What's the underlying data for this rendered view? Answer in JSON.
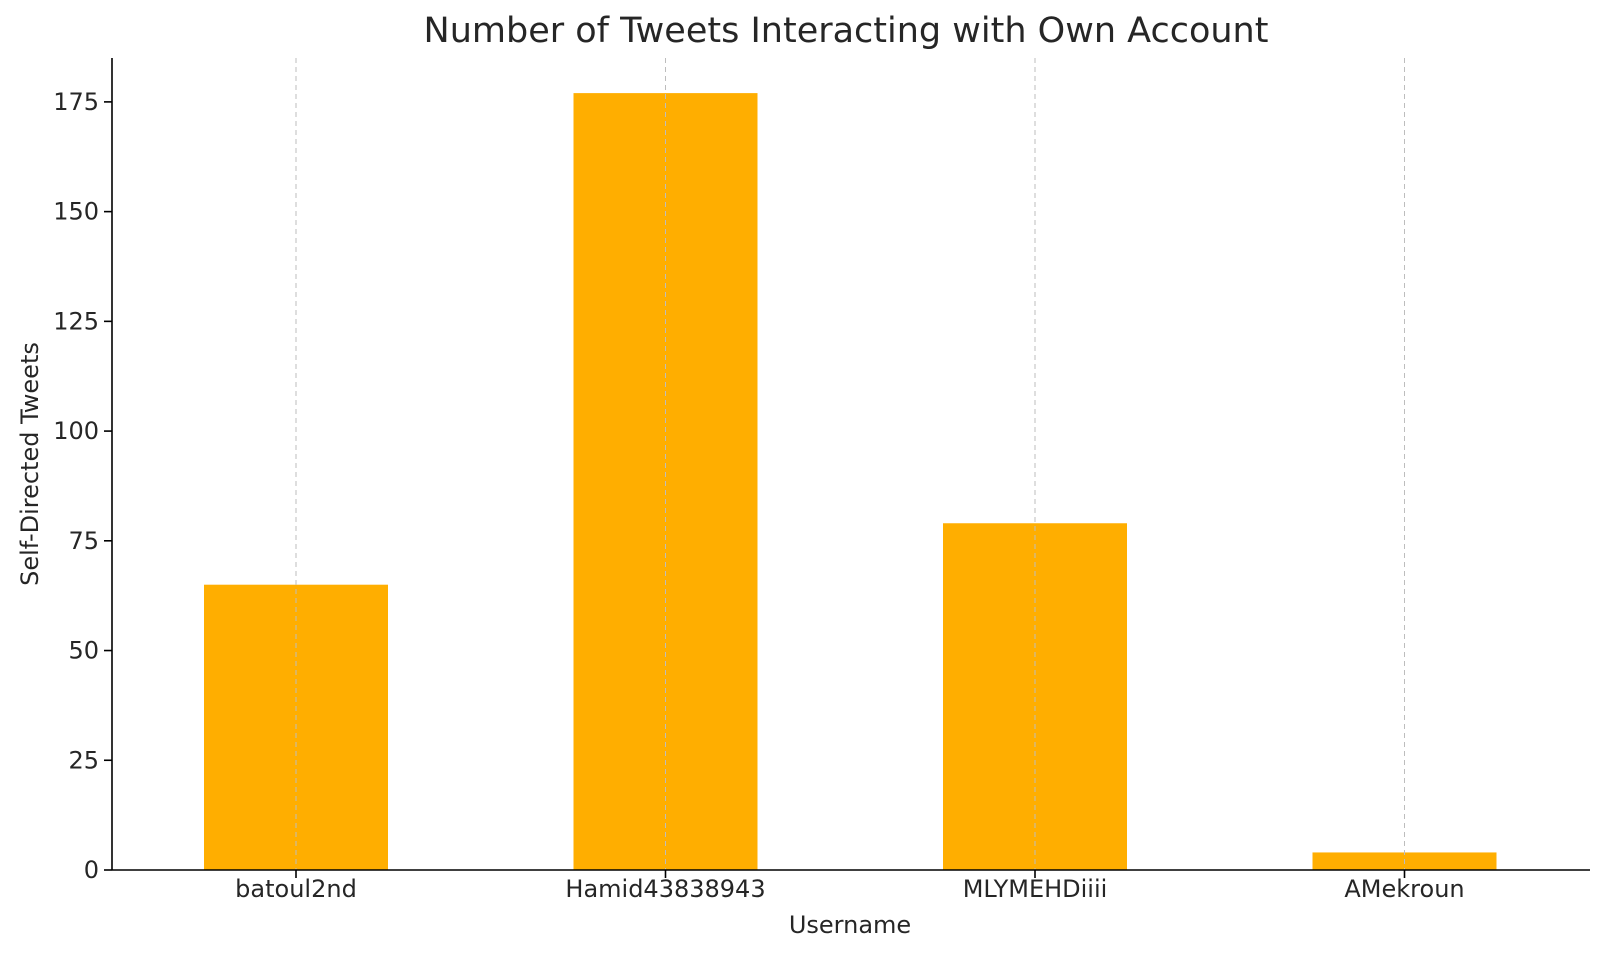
{
  "chart_data": {
    "type": "bar",
    "title": "Number of Tweets Interacting with Own Account",
    "xlabel": "Username",
    "ylabel": "Self-Directed Tweets",
    "categories": [
      "batoul2nd",
      "Hamid43838943",
      "MLYMEHDiiii",
      "AMekroun"
    ],
    "values": [
      65,
      177,
      79,
      4
    ],
    "ylim": [
      0,
      185
    ],
    "yticks": [
      0,
      25,
      50,
      75,
      100,
      125,
      150,
      175
    ],
    "bar_color": "#FFAE00",
    "grid": "vertical dashed lines at each category"
  }
}
